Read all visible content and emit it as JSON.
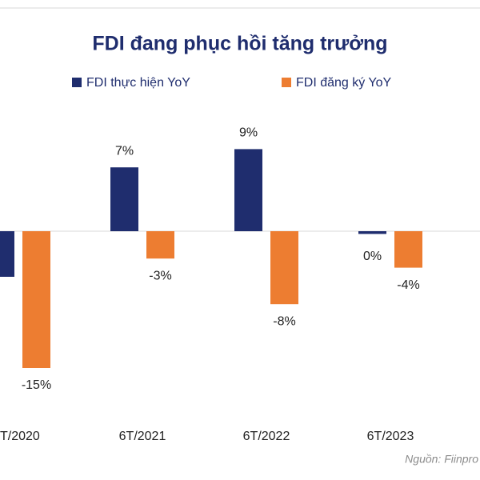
{
  "chart_data": {
    "type": "bar",
    "title": "FDI đang phục hồi tăng trưởng",
    "source": "Nguồn: Fiinpro",
    "categories": [
      "T/2020",
      "6T/2021",
      "6T/2022",
      "6T/2023"
    ],
    "series": [
      {
        "name": "FDI thực hiện YoY",
        "color": "#1f2d6e",
        "values": [
          -5,
          7,
          9,
          -0.3
        ],
        "value_labels": [
          null,
          "7%",
          "9%",
          "0%"
        ]
      },
      {
        "name": "FDI đăng ký YoY",
        "color": "#ed7d31",
        "values": [
          -15,
          -3,
          -8,
          -4
        ],
        "value_labels": [
          "-15%",
          "-3%",
          "-8%",
          "-4%"
        ]
      }
    ],
    "ylim": [
      -17,
      11
    ]
  }
}
